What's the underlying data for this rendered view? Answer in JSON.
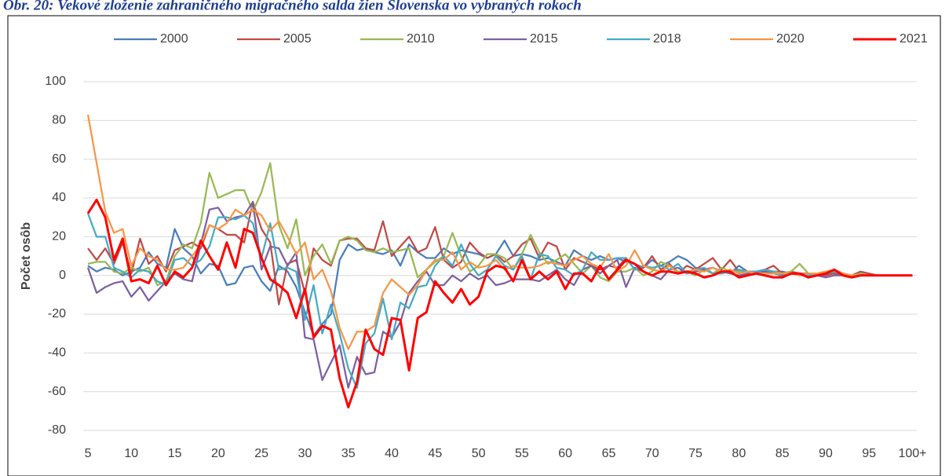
{
  "chart_data": {
    "type": "line",
    "title": "Obr. 20: Vekové zloženie zahraničného migračného salda žien Slovenska vo vybraných rokoch",
    "y_label": "Počet osôb",
    "categories": [
      "5",
      null,
      null,
      null,
      null,
      "10",
      null,
      null,
      null,
      null,
      "15",
      null,
      null,
      null,
      null,
      "20",
      null,
      null,
      null,
      null,
      "25",
      null,
      null,
      null,
      null,
      "30",
      null,
      null,
      null,
      null,
      "35",
      null,
      null,
      null,
      null,
      "40",
      null,
      null,
      null,
      null,
      "45",
      null,
      null,
      null,
      null,
      "50",
      null,
      null,
      null,
      null,
      "55",
      null,
      null,
      null,
      null,
      "60",
      null,
      null,
      null,
      null,
      "65",
      null,
      null,
      null,
      null,
      "70",
      null,
      null,
      null,
      null,
      "75",
      null,
      null,
      null,
      null,
      "80",
      null,
      null,
      null,
      null,
      "85",
      null,
      null,
      null,
      null,
      "90",
      null,
      null,
      null,
      null,
      "95",
      null,
      null,
      null,
      null,
      "100+"
    ],
    "ylim": [
      -80,
      100
    ],
    "yticks": [
      -80,
      -60,
      -40,
      -20,
      0,
      20,
      40,
      60,
      80,
      100
    ],
    "grid": true,
    "legend": "top",
    "series": [
      {
        "name": "2000",
        "color": "#4a7ebb",
        "values": [
          5,
          2,
          4,
          3,
          0,
          2,
          4,
          12,
          6,
          4,
          24,
          14,
          10,
          1,
          6,
          5,
          -5,
          -4,
          4,
          5,
          -3,
          -8,
          5,
          2,
          -6,
          -19,
          -31,
          -25,
          -20,
          8,
          16,
          13,
          14,
          12,
          11,
          13,
          5,
          16,
          12,
          9,
          9,
          14,
          11,
          13,
          12,
          11,
          9,
          11,
          18,
          10,
          11,
          10,
          8,
          9,
          7,
          5,
          13,
          10,
          8,
          10,
          8,
          9,
          7,
          6,
          4,
          8,
          5,
          7,
          10,
          8,
          4,
          3,
          1,
          2,
          1,
          5,
          2,
          1,
          2,
          2,
          2,
          1,
          1,
          0,
          1,
          1,
          1,
          0,
          0,
          1,
          0,
          0,
          0,
          0,
          0,
          0
        ]
      },
      {
        "name": "2005",
        "color": "#be4b48",
        "values": [
          14,
          8,
          14,
          6,
          17,
          1,
          19,
          6,
          10,
          2,
          13,
          15,
          17,
          14,
          26,
          24,
          21,
          21,
          17,
          38,
          24,
          17,
          -15,
          6,
          8,
          -9,
          14,
          8,
          5,
          18,
          19,
          19,
          14,
          13,
          28,
          10,
          15,
          20,
          12,
          14,
          25,
          8,
          4,
          7,
          17,
          12,
          9,
          11,
          7,
          10,
          16,
          19,
          9,
          17,
          15,
          3,
          9,
          7,
          5,
          3,
          5,
          4,
          9,
          3,
          4,
          10,
          3,
          6,
          1,
          5,
          3,
          6,
          9,
          3,
          8,
          2,
          2,
          2,
          3,
          5,
          1,
          2,
          1,
          1,
          0,
          0,
          1,
          1,
          0,
          2,
          1,
          0,
          0,
          0,
          0,
          0
        ]
      },
      {
        "name": "2010",
        "color": "#98b954",
        "values": [
          6,
          7,
          7,
          2,
          1,
          4,
          2,
          4,
          -5,
          -3,
          10,
          16,
          14,
          27,
          53,
          40,
          42,
          44,
          44,
          33,
          43,
          58,
          26,
          14,
          29,
          0,
          10,
          16,
          6,
          18,
          20,
          18,
          13,
          12,
          14,
          12,
          13,
          14,
          -1,
          3,
          7,
          10,
          22,
          10,
          2,
          5,
          11,
          11,
          9,
          3,
          11,
          21,
          12,
          6,
          8,
          11,
          6,
          1,
          5,
          -1,
          -3,
          2,
          2,
          4,
          0,
          2,
          7,
          5,
          2,
          2,
          0,
          3,
          1,
          4,
          2,
          2,
          2,
          1,
          2,
          2,
          1,
          2,
          6,
          1,
          1,
          2,
          2,
          1,
          0,
          1,
          0,
          0,
          0,
          0,
          0,
          0
        ]
      },
      {
        "name": "2015",
        "color": "#7d60a0",
        "values": [
          4,
          -9,
          -6,
          -4,
          -3,
          -11,
          -6,
          -13,
          -8,
          -3,
          1,
          -2,
          -3,
          16,
          34,
          35,
          28,
          30,
          31,
          38,
          3,
          15,
          14,
          5,
          12,
          -32,
          -33,
          -54,
          -45,
          -36,
          -58,
          -42,
          -51,
          -50,
          -29,
          -32,
          -24,
          -9,
          -3,
          2,
          -5,
          -5,
          0,
          -3,
          1,
          -2,
          0,
          -5,
          -4,
          -2,
          -2,
          -2,
          -3,
          0,
          3,
          -2,
          -5,
          3,
          5,
          1,
          5,
          8,
          -6,
          4,
          2,
          0,
          -2,
          3,
          4,
          1,
          2,
          3,
          4,
          2,
          1,
          0,
          1,
          2,
          2,
          1,
          0,
          1,
          1,
          0,
          0,
          -1,
          0,
          0,
          0,
          0,
          0,
          0,
          0,
          0,
          0,
          0
        ]
      },
      {
        "name": "2018",
        "color": "#46aac5",
        "values": [
          32,
          20,
          20,
          4,
          2,
          -1,
          3,
          2,
          -3,
          -5,
          8,
          9,
          5,
          8,
          15,
          30,
          30,
          29,
          31,
          27,
          9,
          27,
          3,
          4,
          2,
          -23,
          -5,
          -30,
          -15,
          -30,
          -48,
          -58,
          -35,
          -30,
          -12,
          -33,
          -14,
          -17,
          -6,
          -5,
          5,
          10,
          5,
          16,
          6,
          0,
          3,
          10,
          5,
          3,
          10,
          -2,
          11,
          10,
          4,
          3,
          0,
          3,
          12,
          8,
          8,
          9,
          9,
          3,
          5,
          4,
          5,
          3,
          6,
          1,
          3,
          4,
          1,
          1,
          2,
          3,
          2,
          2,
          3,
          2,
          -1,
          1,
          0,
          0,
          1,
          1,
          2,
          1,
          0,
          0,
          0,
          0,
          0,
          0,
          0,
          0
        ]
      },
      {
        "name": "2020",
        "color": "#f79646",
        "values": [
          83,
          58,
          33,
          22,
          24,
          5,
          14,
          10,
          8,
          3,
          3,
          4,
          10,
          16,
          26,
          24,
          27,
          34,
          31,
          34,
          31,
          23,
          28,
          20,
          11,
          17,
          -2,
          3,
          -8,
          -27,
          -38,
          -29,
          -29,
          -26,
          -9,
          -2,
          -6,
          -10,
          -5,
          3,
          8,
          8,
          12,
          3,
          7,
          4,
          5,
          8,
          3,
          5,
          4,
          4,
          5,
          7,
          6,
          5,
          8,
          10,
          6,
          4,
          11,
          2,
          5,
          13,
          5,
          3,
          2,
          5,
          1,
          2,
          3,
          2,
          4,
          2,
          3,
          1,
          2,
          1,
          1,
          1,
          1,
          1,
          0,
          1,
          1,
          2,
          3,
          1,
          0,
          0,
          0,
          0,
          0,
          0,
          0,
          0
        ]
      },
      {
        "name": "2021",
        "color": "#ff0000",
        "values": [
          32,
          39,
          30,
          8,
          19,
          -3,
          -2,
          -4,
          5,
          -5,
          2,
          -1,
          4,
          18,
          10,
          3,
          17,
          4,
          24,
          22,
          9,
          -2,
          -5,
          -9,
          -22,
          -7,
          -32,
          -26,
          -28,
          -53,
          -68,
          -55,
          -28,
          -38,
          -41,
          -22,
          -23,
          -49,
          -22,
          -19,
          -3,
          -9,
          -14,
          -7,
          -15,
          -11,
          2,
          5,
          4,
          -3,
          8,
          -2,
          2,
          -2,
          2,
          -7,
          1,
          1,
          -3,
          5,
          -2,
          3,
          8,
          6,
          2,
          0,
          2,
          2,
          1,
          2,
          1,
          -1,
          0,
          2,
          2,
          -1,
          0,
          1,
          0,
          -1,
          -1,
          1,
          1,
          -1,
          0,
          1,
          3,
          0,
          -1,
          0,
          0,
          0,
          0,
          0,
          0,
          0
        ]
      }
    ]
  }
}
